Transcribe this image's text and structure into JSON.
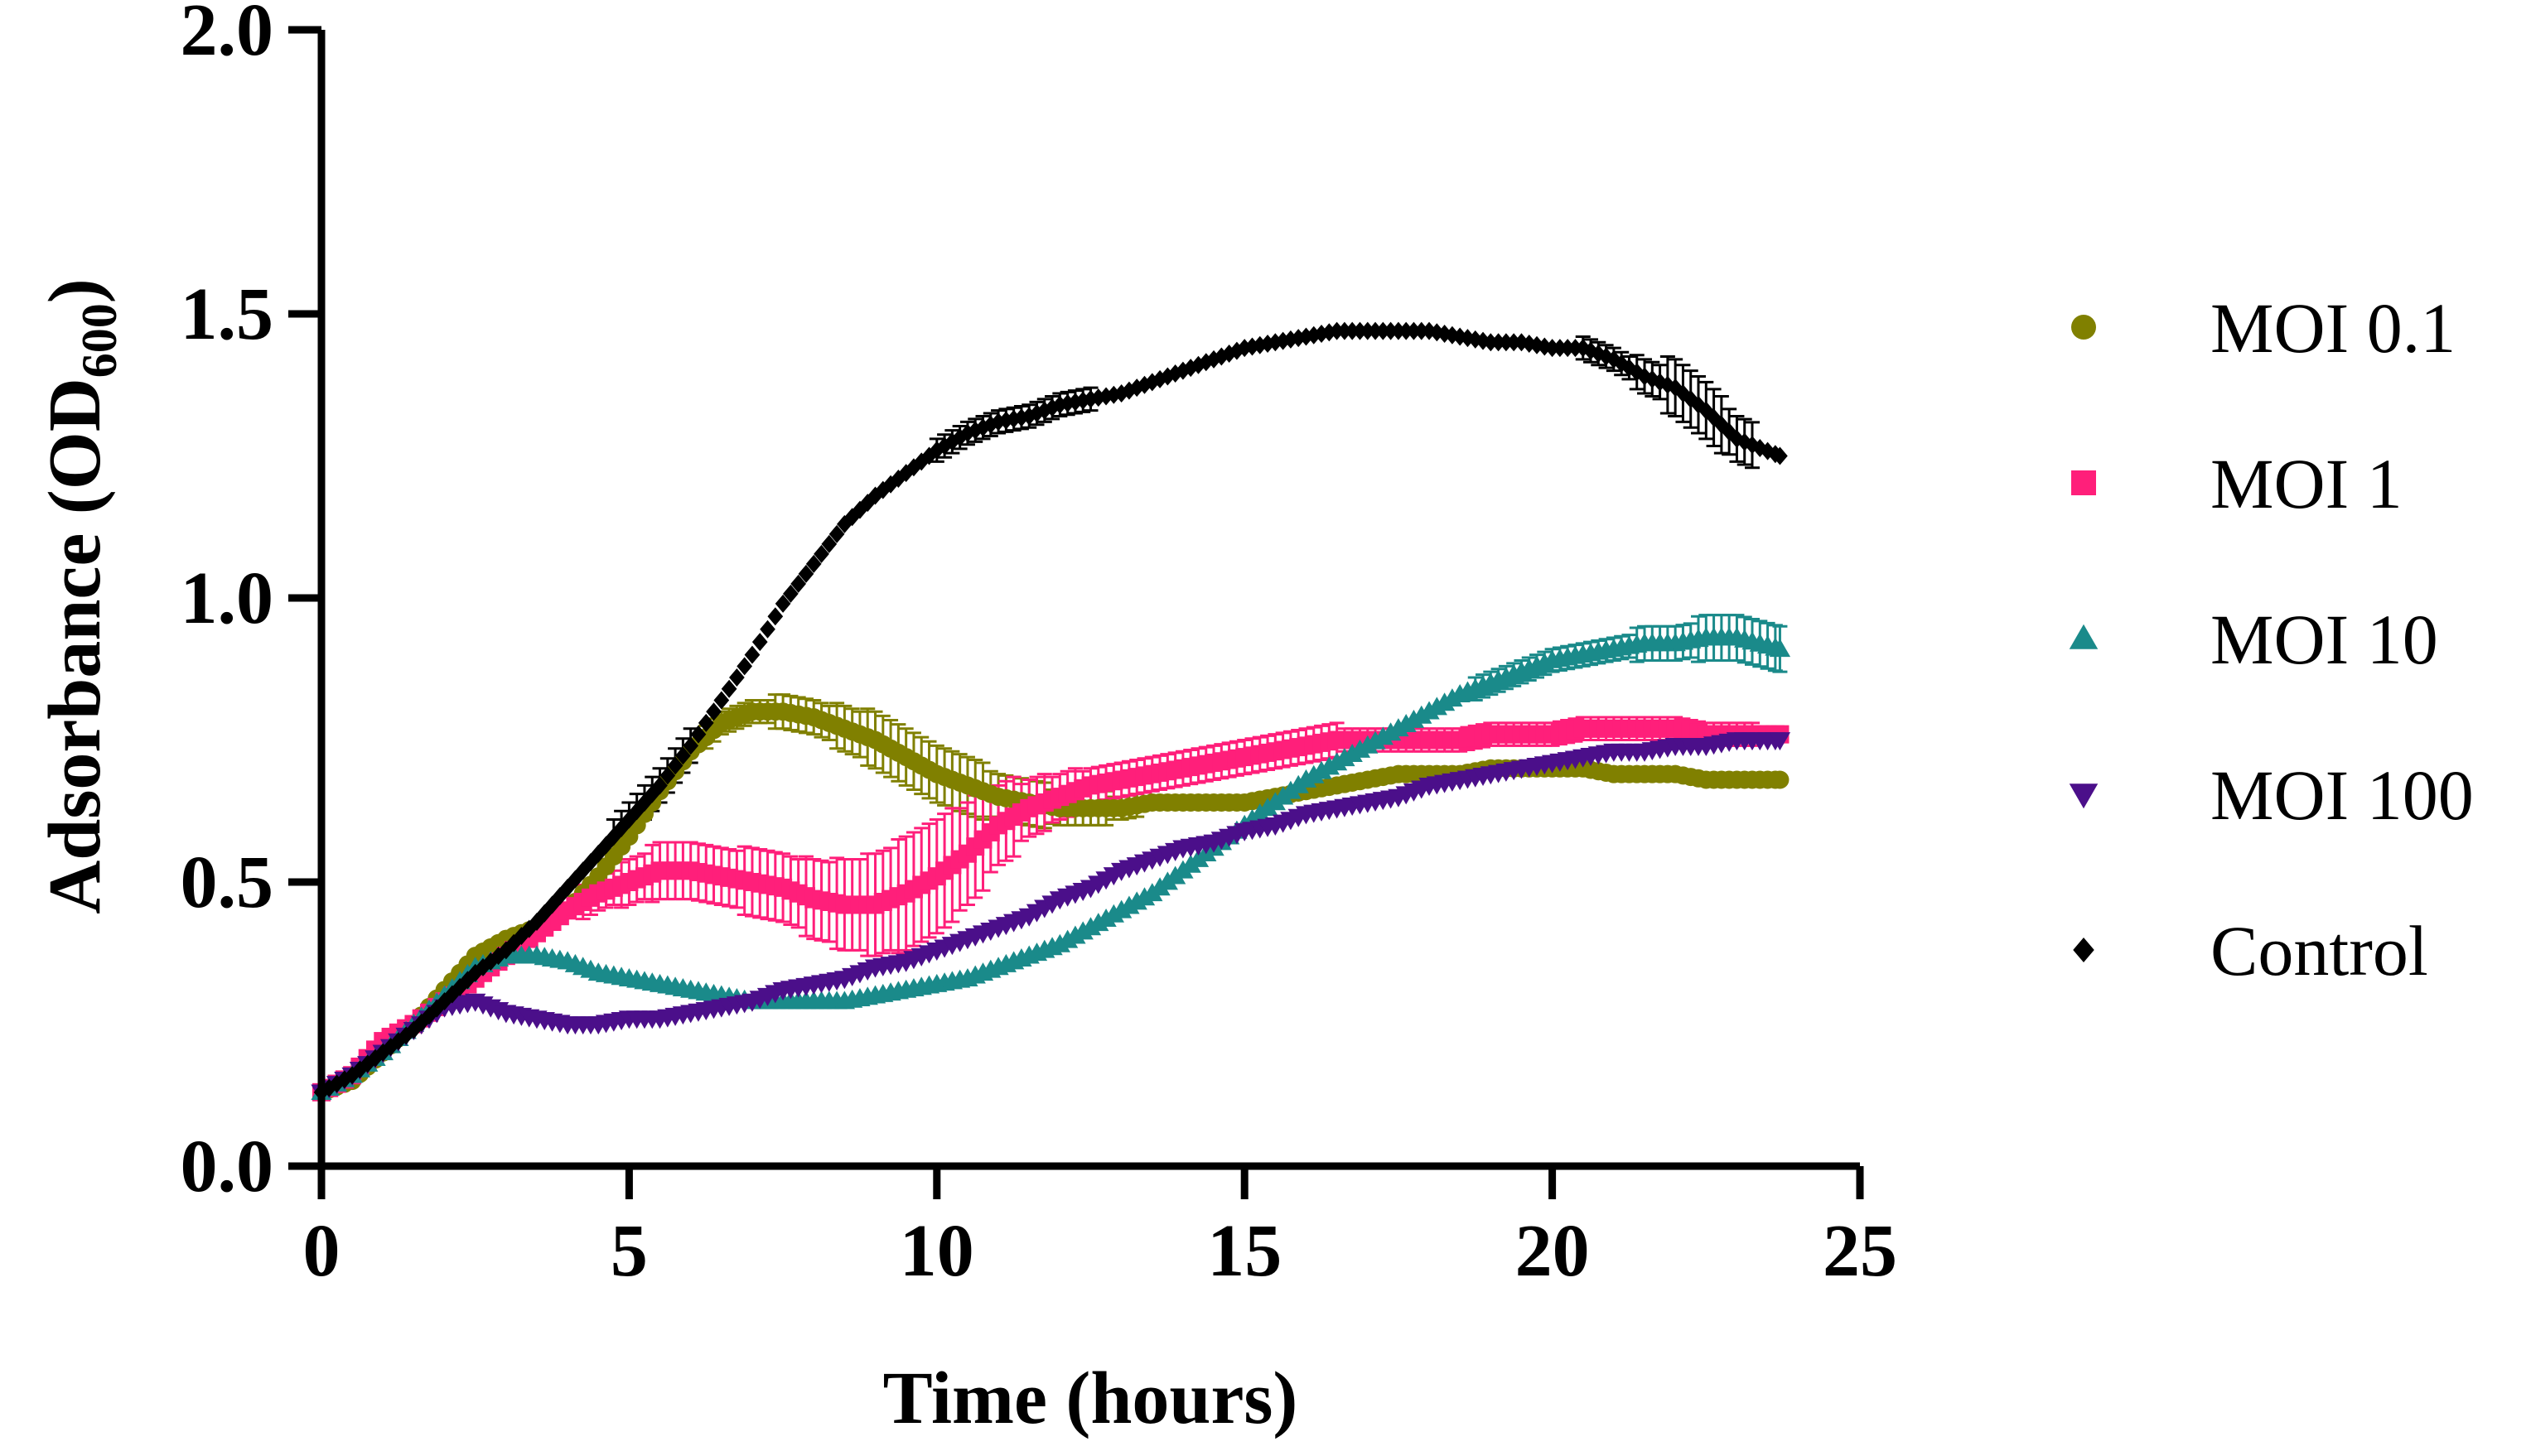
{
  "chart_data": {
    "type": "line",
    "title": "",
    "xlabel": "Time (hours)",
    "ylabel_main": "Adsorbance (OD",
    "ylabel_sub": "600",
    "ylabel_close": ")",
    "xlim": [
      0,
      25
    ],
    "ylim": [
      0,
      2
    ],
    "x_ticks": [
      "0",
      "5",
      "10",
      "15",
      "20",
      "25"
    ],
    "y_ticks": [
      "0.0",
      "0.5",
      "1.0",
      "1.5",
      "2.0"
    ],
    "grid": false,
    "legend_position": "right",
    "series": [
      {
        "name": "MOI 0.1",
        "color": "#808000",
        "marker": "circle",
        "points": [
          [
            0,
            0.13
          ],
          [
            0.5,
            0.15
          ],
          [
            1,
            0.2
          ],
          [
            1.5,
            0.25
          ],
          [
            2,
            0.31
          ],
          [
            2.5,
            0.37
          ],
          [
            3,
            0.4
          ],
          [
            3.5,
            0.42
          ],
          [
            4,
            0.45
          ],
          [
            4.5,
            0.51
          ],
          [
            5,
            0.58
          ],
          [
            5.5,
            0.66
          ],
          [
            6,
            0.73
          ],
          [
            6.5,
            0.78
          ],
          [
            7,
            0.8
          ],
          [
            7.5,
            0.8
          ],
          [
            8,
            0.79
          ],
          [
            8.5,
            0.77
          ],
          [
            9,
            0.75
          ],
          [
            9.5,
            0.72
          ],
          [
            10,
            0.69
          ],
          [
            10.5,
            0.67
          ],
          [
            11,
            0.65
          ],
          [
            11.5,
            0.64
          ],
          [
            12,
            0.63
          ],
          [
            12.5,
            0.63
          ],
          [
            13,
            0.63
          ],
          [
            13.5,
            0.64
          ],
          [
            14,
            0.64
          ],
          [
            14.5,
            0.64
          ],
          [
            15,
            0.64
          ],
          [
            15.5,
            0.65
          ],
          [
            16,
            0.66
          ],
          [
            16.5,
            0.67
          ],
          [
            17,
            0.68
          ],
          [
            17.5,
            0.69
          ],
          [
            18,
            0.69
          ],
          [
            18.5,
            0.69
          ],
          [
            19,
            0.7
          ],
          [
            19.5,
            0.7
          ],
          [
            20,
            0.7
          ],
          [
            20.5,
            0.7
          ],
          [
            21,
            0.69
          ],
          [
            21.5,
            0.69
          ],
          [
            22,
            0.69
          ],
          [
            22.5,
            0.68
          ],
          [
            23,
            0.68
          ],
          [
            23.7,
            0.68
          ]
        ],
        "err": [
          [
            6.5,
            0.02
          ],
          [
            7,
            0.02
          ],
          [
            7.5,
            0.03
          ],
          [
            8,
            0.03
          ],
          [
            8.5,
            0.04
          ],
          [
            9,
            0.05
          ],
          [
            9.5,
            0.05
          ],
          [
            10,
            0.05
          ],
          [
            10.5,
            0.05
          ],
          [
            11,
            0.04
          ],
          [
            11.5,
            0.04
          ],
          [
            12,
            0.03
          ],
          [
            12.5,
            0.03
          ],
          [
            13,
            0.02
          ]
        ]
      },
      {
        "name": "MOI 1",
        "color": "#FF1F7A",
        "marker": "square",
        "points": [
          [
            0,
            0.13
          ],
          [
            0.5,
            0.16
          ],
          [
            1,
            0.22
          ],
          [
            1.5,
            0.25
          ],
          [
            2,
            0.29
          ],
          [
            2.5,
            0.33
          ],
          [
            3,
            0.37
          ],
          [
            3.5,
            0.41
          ],
          [
            4,
            0.45
          ],
          [
            4.5,
            0.48
          ],
          [
            5,
            0.5
          ],
          [
            5.5,
            0.52
          ],
          [
            6,
            0.52
          ],
          [
            6.5,
            0.51
          ],
          [
            7,
            0.5
          ],
          [
            7.5,
            0.49
          ],
          [
            8,
            0.47
          ],
          [
            8.5,
            0.46
          ],
          [
            9,
            0.46
          ],
          [
            9.5,
            0.48
          ],
          [
            10,
            0.51
          ],
          [
            10.5,
            0.55
          ],
          [
            11,
            0.6
          ],
          [
            11.5,
            0.63
          ],
          [
            12,
            0.65
          ],
          [
            12.5,
            0.67
          ],
          [
            13,
            0.68
          ],
          [
            13.5,
            0.69
          ],
          [
            14,
            0.7
          ],
          [
            14.5,
            0.71
          ],
          [
            15,
            0.72
          ],
          [
            15.5,
            0.73
          ],
          [
            16,
            0.74
          ],
          [
            16.5,
            0.75
          ],
          [
            17,
            0.75
          ],
          [
            17.5,
            0.75
          ],
          [
            18,
            0.75
          ],
          [
            18.5,
            0.75
          ],
          [
            19,
            0.76
          ],
          [
            19.5,
            0.76
          ],
          [
            20,
            0.76
          ],
          [
            20.5,
            0.77
          ],
          [
            21,
            0.77
          ],
          [
            21.5,
            0.77
          ],
          [
            22,
            0.77
          ],
          [
            22.5,
            0.76
          ],
          [
            23,
            0.76
          ],
          [
            23.7,
            0.76
          ]
        ],
        "err": [
          [
            4.5,
            0.03
          ],
          [
            5,
            0.04
          ],
          [
            5.5,
            0.05
          ],
          [
            6,
            0.05
          ],
          [
            6.5,
            0.05
          ],
          [
            7,
            0.06
          ],
          [
            7.5,
            0.06
          ],
          [
            8,
            0.07
          ],
          [
            8.5,
            0.08
          ],
          [
            9,
            0.09
          ],
          [
            9.5,
            0.1
          ],
          [
            10,
            0.1
          ],
          [
            10.5,
            0.09
          ],
          [
            11,
            0.07
          ],
          [
            11.5,
            0.05
          ],
          [
            12,
            0.04
          ],
          [
            12.5,
            0.03
          ],
          [
            13,
            0.03
          ],
          [
            14,
            0.03
          ],
          [
            15,
            0.03
          ],
          [
            16,
            0.03
          ],
          [
            17,
            0.02
          ],
          [
            18,
            0.02
          ],
          [
            19,
            0.02
          ],
          [
            20,
            0.02
          ],
          [
            21,
            0.02
          ],
          [
            22,
            0.02
          ],
          [
            23,
            0.02
          ]
        ]
      },
      {
        "name": "MOI 10",
        "color": "#1A8A8A",
        "marker": "triangle",
        "points": [
          [
            0,
            0.13
          ],
          [
            0.5,
            0.16
          ],
          [
            1,
            0.2
          ],
          [
            1.5,
            0.25
          ],
          [
            2,
            0.3
          ],
          [
            2.5,
            0.35
          ],
          [
            3,
            0.37
          ],
          [
            3.5,
            0.37
          ],
          [
            4,
            0.36
          ],
          [
            4.5,
            0.34
          ],
          [
            5,
            0.33
          ],
          [
            5.5,
            0.32
          ],
          [
            6,
            0.31
          ],
          [
            6.5,
            0.3
          ],
          [
            7,
            0.29
          ],
          [
            7.5,
            0.29
          ],
          [
            8,
            0.29
          ],
          [
            8.5,
            0.29
          ],
          [
            9,
            0.3
          ],
          [
            9.5,
            0.31
          ],
          [
            10,
            0.32
          ],
          [
            10.5,
            0.33
          ],
          [
            11,
            0.35
          ],
          [
            11.5,
            0.37
          ],
          [
            12,
            0.39
          ],
          [
            12.5,
            0.42
          ],
          [
            13,
            0.45
          ],
          [
            13.5,
            0.48
          ],
          [
            14,
            0.52
          ],
          [
            14.5,
            0.56
          ],
          [
            15,
            0.6
          ],
          [
            15.5,
            0.64
          ],
          [
            16,
            0.68
          ],
          [
            16.5,
            0.71
          ],
          [
            17,
            0.74
          ],
          [
            17.5,
            0.77
          ],
          [
            18,
            0.8
          ],
          [
            18.5,
            0.83
          ],
          [
            19,
            0.85
          ],
          [
            19.5,
            0.87
          ],
          [
            20,
            0.89
          ],
          [
            20.5,
            0.9
          ],
          [
            21,
            0.91
          ],
          [
            21.5,
            0.92
          ],
          [
            22,
            0.92
          ],
          [
            22.5,
            0.93
          ],
          [
            23,
            0.93
          ],
          [
            23.7,
            0.91
          ]
        ],
        "err": [
          [
            19,
            0.02
          ],
          [
            20,
            0.02
          ],
          [
            21,
            0.02
          ],
          [
            21.5,
            0.03
          ],
          [
            22,
            0.03
          ],
          [
            22.5,
            0.04
          ],
          [
            23,
            0.04
          ],
          [
            23.7,
            0.04
          ]
        ]
      },
      {
        "name": "MOI 100",
        "color": "#4B0F8A",
        "marker": "triangle-down",
        "points": [
          [
            0,
            0.13
          ],
          [
            0.5,
            0.16
          ],
          [
            1,
            0.2
          ],
          [
            1.5,
            0.24
          ],
          [
            2,
            0.28
          ],
          [
            2.5,
            0.29
          ],
          [
            3,
            0.27
          ],
          [
            3.5,
            0.26
          ],
          [
            4,
            0.25
          ],
          [
            4.5,
            0.25
          ],
          [
            5,
            0.26
          ],
          [
            5.5,
            0.26
          ],
          [
            6,
            0.27
          ],
          [
            6.5,
            0.28
          ],
          [
            7,
            0.29
          ],
          [
            7.5,
            0.31
          ],
          [
            8,
            0.32
          ],
          [
            8.5,
            0.33
          ],
          [
            9,
            0.35
          ],
          [
            9.5,
            0.36
          ],
          [
            10,
            0.38
          ],
          [
            10.5,
            0.4
          ],
          [
            11,
            0.42
          ],
          [
            11.5,
            0.44
          ],
          [
            12,
            0.47
          ],
          [
            12.5,
            0.49
          ],
          [
            13,
            0.52
          ],
          [
            13.5,
            0.54
          ],
          [
            14,
            0.56
          ],
          [
            14.5,
            0.57
          ],
          [
            15,
            0.59
          ],
          [
            15.5,
            0.6
          ],
          [
            16,
            0.62
          ],
          [
            16.5,
            0.63
          ],
          [
            17,
            0.64
          ],
          [
            17.5,
            0.65
          ],
          [
            18,
            0.67
          ],
          [
            18.5,
            0.68
          ],
          [
            19,
            0.69
          ],
          [
            19.5,
            0.7
          ],
          [
            20,
            0.71
          ],
          [
            20.5,
            0.72
          ],
          [
            21,
            0.73
          ],
          [
            21.5,
            0.73
          ],
          [
            22,
            0.74
          ],
          [
            22.5,
            0.74
          ],
          [
            23,
            0.75
          ],
          [
            23.7,
            0.75
          ]
        ],
        "err": []
      },
      {
        "name": "Control",
        "color": "#000000",
        "marker": "diamond",
        "points": [
          [
            0,
            0.13
          ],
          [
            0.5,
            0.16
          ],
          [
            1,
            0.2
          ],
          [
            1.5,
            0.24
          ],
          [
            2,
            0.29
          ],
          [
            2.5,
            0.34
          ],
          [
            3,
            0.38
          ],
          [
            3.5,
            0.43
          ],
          [
            4,
            0.49
          ],
          [
            4.5,
            0.55
          ],
          [
            5,
            0.61
          ],
          [
            5.5,
            0.67
          ],
          [
            6,
            0.74
          ],
          [
            6.5,
            0.82
          ],
          [
            7,
            0.9
          ],
          [
            7.5,
            0.99
          ],
          [
            8,
            1.06
          ],
          [
            8.5,
            1.13
          ],
          [
            9,
            1.18
          ],
          [
            9.5,
            1.22
          ],
          [
            10,
            1.26
          ],
          [
            10.5,
            1.29
          ],
          [
            11,
            1.31
          ],
          [
            11.5,
            1.32
          ],
          [
            12,
            1.34
          ],
          [
            12.5,
            1.35
          ],
          [
            13,
            1.36
          ],
          [
            13.5,
            1.38
          ],
          [
            14,
            1.4
          ],
          [
            14.5,
            1.42
          ],
          [
            15,
            1.44
          ],
          [
            15.5,
            1.45
          ],
          [
            16,
            1.46
          ],
          [
            16.5,
            1.47
          ],
          [
            17,
            1.47
          ],
          [
            17.5,
            1.47
          ],
          [
            18,
            1.47
          ],
          [
            18.5,
            1.46
          ],
          [
            19,
            1.45
          ],
          [
            19.5,
            1.45
          ],
          [
            20,
            1.44
          ],
          [
            20.5,
            1.44
          ],
          [
            21,
            1.42
          ],
          [
            21.5,
            1.39
          ],
          [
            22,
            1.37
          ],
          [
            22.5,
            1.33
          ],
          [
            23,
            1.28
          ],
          [
            23.7,
            1.25
          ]
        ],
        "err": [
          [
            5,
            0.03
          ],
          [
            5.5,
            0.03
          ],
          [
            10.5,
            0.02
          ],
          [
            11,
            0.02
          ],
          [
            11.5,
            0.02
          ],
          [
            12,
            0.02
          ],
          [
            21,
            0.02
          ],
          [
            21.5,
            0.03
          ],
          [
            22,
            0.05
          ],
          [
            22.5,
            0.05
          ],
          [
            23,
            0.04
          ]
        ]
      }
    ]
  }
}
